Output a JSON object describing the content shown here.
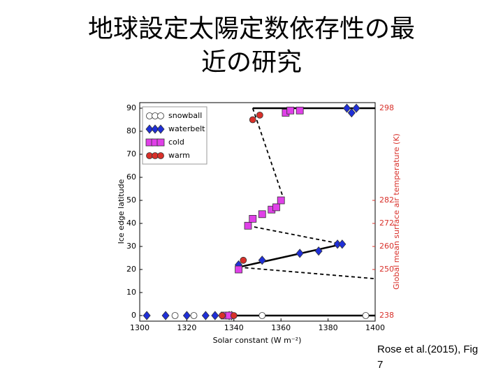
{
  "chart_data": {
    "type": "scatter",
    "title": "地球設定太陽定数依存性の最近の研究",
    "annotation": "Rose et al.(2015), Fig 7",
    "xlabel": "Solar constant (W m⁻²)",
    "ylabel": "Ice edge latitude",
    "y2label": "Global mean surface air temperature (K)",
    "xlim": [
      1300,
      1400
    ],
    "xticks": [
      1300,
      1320,
      1340,
      1360,
      1380,
      1400
    ],
    "ylim": [
      0,
      90
    ],
    "yticks": [
      0,
      10,
      20,
      30,
      40,
      50,
      60,
      70,
      80,
      90
    ],
    "y2ticks": [
      238,
      250,
      260,
      272,
      282,
      298
    ],
    "y2tick_ice_latitude": [
      0,
      20,
      30,
      40,
      50,
      90
    ],
    "legend": "upper-left",
    "series": [
      {
        "name": "snowball",
        "marker": "circle",
        "color": "#ffffff",
        "x": [
          1315,
          1323,
          1352,
          1396
        ],
        "values": [
          0,
          0,
          0,
          0
        ]
      },
      {
        "name": "waterbelt",
        "marker": "diamond",
        "color": "#1f2fd8",
        "x": [
          1303,
          1311,
          1320,
          1328,
          1332,
          1338,
          1339,
          1342,
          1352,
          1368,
          1376,
          1384,
          1386,
          1388,
          1390,
          1392
        ],
        "values": [
          0,
          0,
          0,
          0,
          0,
          0,
          0,
          22,
          24,
          27,
          28,
          31,
          31,
          90,
          88,
          90
        ]
      },
      {
        "name": "cold",
        "marker": "square",
        "color": "#e040e8",
        "x": [
          1336,
          1338,
          1342,
          1346,
          1348,
          1352,
          1356,
          1358,
          1360,
          1362,
          1364,
          1368
        ],
        "values": [
          0,
          0,
          20,
          39,
          42,
          44,
          46,
          47,
          50,
          88,
          89,
          89
        ]
      },
      {
        "name": "warm",
        "marker": "circle",
        "color": "#d8302a",
        "x": [
          1335,
          1340,
          1344,
          1348,
          1351
        ],
        "values": [
          0,
          0,
          24,
          85,
          87
        ]
      }
    ],
    "lines": [
      {
        "style": "solid",
        "x": [
          1336,
          1400
        ],
        "values": [
          0,
          0
        ]
      },
      {
        "style": "solid",
        "x": [
          1348,
          1400
        ],
        "values": [
          90,
          90
        ]
      },
      {
        "style": "solid",
        "x": [
          1342,
          1386
        ],
        "values": [
          21,
          31
        ]
      },
      {
        "style": "dashed",
        "x": [
          1348,
          1361
        ],
        "values": [
          90,
          51
        ]
      },
      {
        "style": "dashed",
        "x": [
          1346,
          1386
        ],
        "values": [
          39,
          31
        ]
      },
      {
        "style": "dashed",
        "x": [
          1342,
          1400
        ],
        "values": [
          21,
          16
        ]
      }
    ]
  }
}
